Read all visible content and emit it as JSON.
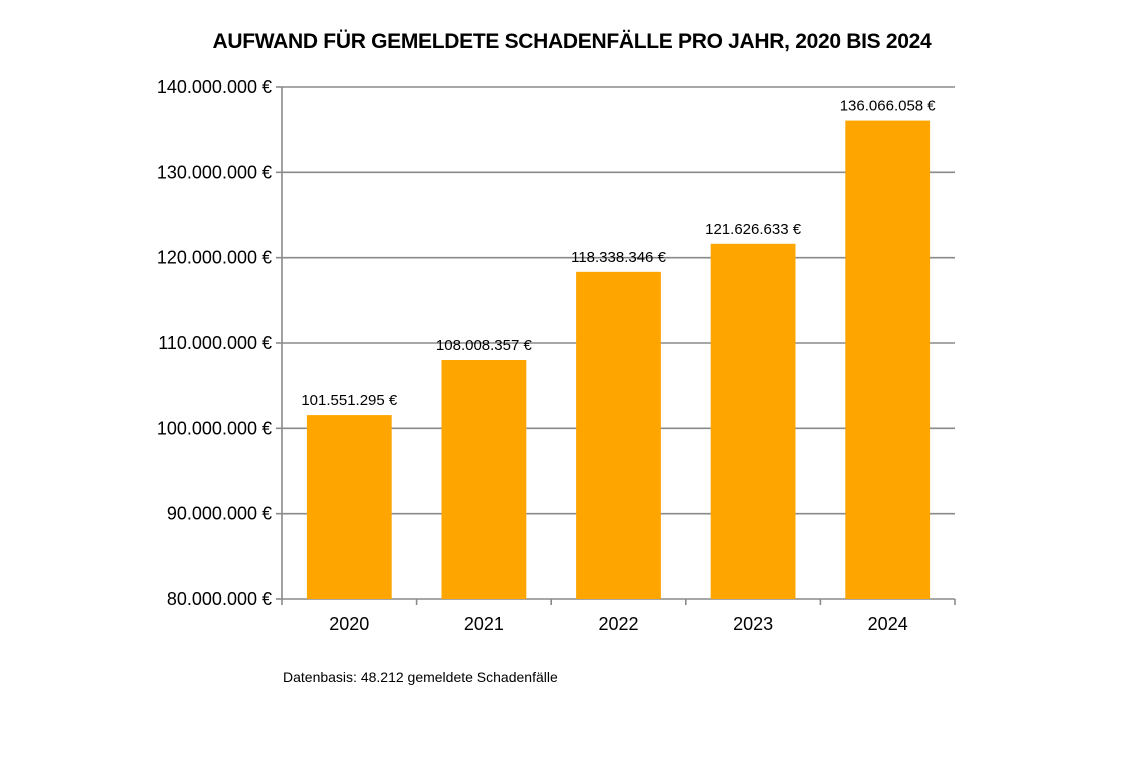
{
  "chart_data": {
    "type": "bar",
    "title": "AUFWAND FÜR GEMELDETE SCHADENFÄLLE PRO JAHR, 2020 BIS 2024",
    "categories": [
      "2020",
      "2021",
      "2022",
      "2023",
      "2024"
    ],
    "values": [
      101551295,
      108008357,
      118338346,
      121626633,
      136066058
    ],
    "value_labels": [
      "101.551.295 €",
      "108.008.357 €",
      "118.338.346 €",
      "121.626.633 €",
      "136.066.058 €"
    ],
    "ylim": [
      80000000,
      140000000
    ],
    "yticks": [
      80000000,
      90000000,
      100000000,
      110000000,
      120000000,
      130000000,
      140000000
    ],
    "ytick_labels": [
      "80.000.000 €",
      "90.000.000 €",
      "100.000.000 €",
      "110.000.000 €",
      "120.000.000 €",
      "130.000.000 €",
      "140.000.000 €"
    ],
    "xlabel": "",
    "ylabel": "",
    "grid": true,
    "bar_color": "#FFA500",
    "footnote": "Datenbasis: 48.212 gemeldete Schadenfälle"
  }
}
